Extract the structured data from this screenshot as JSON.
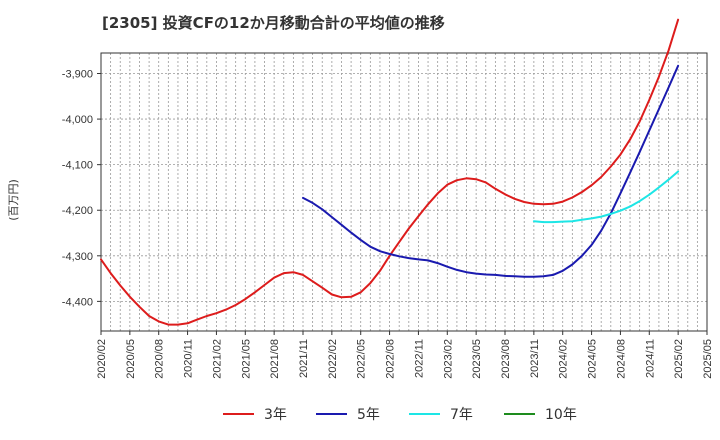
{
  "chart_data": {
    "type": "line",
    "title": "[2305]  投資CFの12か月移動合計の平均値の推移",
    "xlabel": "",
    "ylabel": "(百万円)",
    "ylim": [
      -4465,
      -3855
    ],
    "yticks": [
      -3900,
      -4000,
      -4100,
      -4200,
      -4300,
      -4400
    ],
    "ytick_labels": [
      "-3,900",
      "-4,000",
      "-4,100",
      "-4,200",
      "-4,300",
      "-4,400"
    ],
    "x_start": "2020-02",
    "x_end": "2025-05",
    "xtick_labels": [
      "2020/02",
      "2020/05",
      "2020/08",
      "2020/11",
      "2021/02",
      "2021/05",
      "2021/08",
      "2021/11",
      "2022/02",
      "2022/05",
      "2022/08",
      "2022/11",
      "2023/02",
      "2023/05",
      "2023/08",
      "2023/11",
      "2024/02",
      "2024/05",
      "2024/08",
      "2024/11",
      "2025/02",
      "2025/05"
    ],
    "grid": true,
    "legend_position": "bottom",
    "series": [
      {
        "name": "3年",
        "color": "#dd1c1c",
        "x": [
          "2020-02",
          "2020-03",
          "2020-04",
          "2020-05",
          "2020-06",
          "2020-07",
          "2020-08",
          "2020-09",
          "2020-10",
          "2020-11",
          "2020-12",
          "2021-01",
          "2021-02",
          "2021-03",
          "2021-04",
          "2021-05",
          "2021-06",
          "2021-07",
          "2021-08",
          "2021-09",
          "2021-10",
          "2021-11",
          "2021-12",
          "2022-01",
          "2022-02",
          "2022-03",
          "2022-04",
          "2022-05",
          "2022-06",
          "2022-07",
          "2022-08",
          "2022-09",
          "2022-10",
          "2022-11",
          "2022-12",
          "2023-01",
          "2023-02",
          "2023-03",
          "2023-04",
          "2023-05",
          "2023-06",
          "2023-07",
          "2023-08",
          "2023-09",
          "2023-10",
          "2023-11",
          "2023-12",
          "2024-01",
          "2024-02",
          "2024-03",
          "2024-04",
          "2024-05",
          "2024-06",
          "2024-07",
          "2024-08",
          "2024-09",
          "2024-10",
          "2024-11",
          "2024-12",
          "2025-01",
          "2025-02"
        ],
        "values": [
          -4308,
          -4338,
          -4365,
          -4390,
          -4412,
          -4432,
          -4444,
          -4451,
          -4451,
          -4448,
          -4440,
          -4432,
          -4426,
          -4418,
          -4408,
          -4395,
          -4380,
          -4364,
          -4348,
          -4338,
          -4336,
          -4342,
          -4356,
          -4370,
          -4385,
          -4391,
          -4390,
          -4380,
          -4360,
          -4333,
          -4300,
          -4270,
          -4240,
          -4213,
          -4187,
          -4163,
          -4144,
          -4134,
          -4130,
          -4132,
          -4139,
          -4153,
          -4165,
          -4175,
          -4182,
          -4186,
          -4187,
          -4186,
          -4181,
          -4172,
          -4160,
          -4145,
          -4127,
          -4104,
          -4078,
          -4045,
          -4005,
          -3958,
          -3907,
          -3850,
          -3782
        ]
      },
      {
        "name": "5年",
        "color": "#1a1aaf",
        "x": [
          "2021-11",
          "2021-12",
          "2022-01",
          "2022-02",
          "2022-03",
          "2022-04",
          "2022-05",
          "2022-06",
          "2022-07",
          "2022-08",
          "2022-09",
          "2022-10",
          "2022-11",
          "2022-12",
          "2023-01",
          "2023-02",
          "2023-03",
          "2023-04",
          "2023-05",
          "2023-06",
          "2023-07",
          "2023-08",
          "2023-09",
          "2023-10",
          "2023-11",
          "2023-12",
          "2024-01",
          "2024-02",
          "2024-03",
          "2024-04",
          "2024-05",
          "2024-06",
          "2024-07",
          "2024-08",
          "2024-09",
          "2024-10",
          "2024-11",
          "2024-12",
          "2025-01",
          "2025-02"
        ],
        "values": [
          -4173,
          -4184,
          -4198,
          -4215,
          -4232,
          -4249,
          -4265,
          -4280,
          -4290,
          -4296,
          -4301,
          -4305,
          -4308,
          -4310,
          -4316,
          -4324,
          -4331,
          -4336,
          -4339,
          -4341,
          -4342,
          -4344,
          -4345,
          -4346,
          -4346,
          -4345,
          -4342,
          -4333,
          -4319,
          -4300,
          -4276,
          -4245,
          -4207,
          -4163,
          -4118,
          -4072,
          -4025,
          -3978,
          -3931,
          -3883
        ]
      },
      {
        "name": "7年",
        "color": "#1de6e6",
        "x": [
          "2023-11",
          "2023-12",
          "2024-01",
          "2024-02",
          "2024-03",
          "2024-04",
          "2024-05",
          "2024-06",
          "2024-07",
          "2024-08",
          "2024-09",
          "2024-10",
          "2024-11",
          "2024-12",
          "2025-01",
          "2025-02"
        ],
        "values": [
          -4224,
          -4226,
          -4226,
          -4225,
          -4224,
          -4221,
          -4218,
          -4214,
          -4208,
          -4201,
          -4192,
          -4180,
          -4166,
          -4150,
          -4133,
          -4115
        ]
      },
      {
        "name": "10年",
        "color": "#1e8c1e",
        "x": [],
        "values": []
      }
    ]
  }
}
